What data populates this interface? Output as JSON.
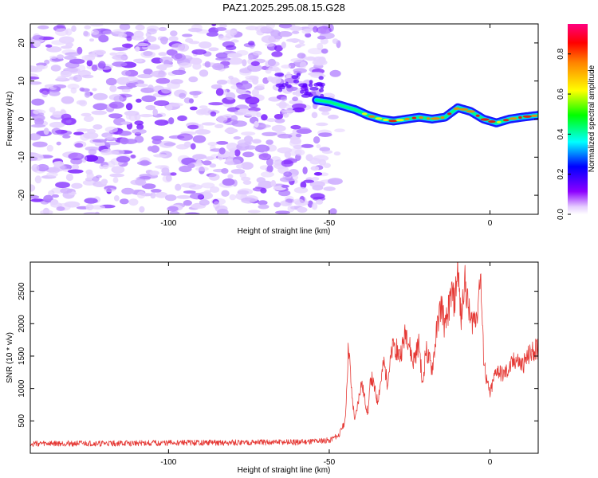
{
  "figure_title": "PAZ1.2025.295.08.15.G28",
  "chart_data": [
    {
      "type": "heatmap",
      "name": "spectrogram",
      "xlabel": "Height of straight line (km)",
      "ylabel": "Frequency (Hz)",
      "xlim": [
        -143,
        15
      ],
      "ylim": [
        -25,
        25
      ],
      "xticks": [
        -100,
        -50,
        0
      ],
      "yticks": [
        -20,
        -10,
        0,
        10,
        20
      ],
      "xtick_labels": [
        "-100",
        "-50",
        "0"
      ],
      "ytick_labels": [
        "-20",
        "-10",
        "0",
        "10",
        "20"
      ],
      "noise_region_x": [
        -143,
        -46
      ],
      "signal_track": {
        "x": [
          -54,
          -50,
          -46,
          -42,
          -38,
          -34,
          -30,
          -26,
          -22,
          -18,
          -14,
          -10,
          -6,
          -2,
          2,
          6,
          10,
          15
        ],
        "y": [
          5,
          4.5,
          3.5,
          2.5,
          1,
          0,
          -0.5,
          0,
          0.5,
          0,
          0.5,
          3,
          2,
          0,
          -1,
          0,
          0.5,
          1
        ]
      },
      "colorbar": {
        "label": "Normalized spectral amplitude",
        "ticks": [
          0.0,
          0.2,
          0.4,
          0.6,
          0.8
        ],
        "tick_labels": [
          "0.0",
          "0.2",
          "0.4",
          "0.6",
          "0.8"
        ],
        "range": [
          0,
          0.95
        ]
      }
    },
    {
      "type": "line",
      "name": "snr",
      "xlabel": "Height of straight line (km)",
      "ylabel": "SNR (10 * v/v)",
      "xlim": [
        -143,
        15
      ],
      "ylim": [
        0,
        2950
      ],
      "xticks": [
        -100,
        -50,
        0
      ],
      "yticks": [
        500,
        1000,
        1500,
        2000,
        2500
      ],
      "xtick_labels": [
        "-100",
        "-50",
        "0"
      ],
      "ytick_labels": [
        "500",
        "1000",
        "1500",
        "2000",
        "2500"
      ],
      "color": "#e53935",
      "series": [
        {
          "name": "SNR",
          "x": [
            -143,
            -120,
            -100,
            -80,
            -60,
            -50,
            -47,
            -45,
            -44,
            -43,
            -42,
            -40,
            -38,
            -37,
            -35,
            -33,
            -32,
            -30,
            -28,
            -26,
            -24,
            -22,
            -21,
            -20,
            -18,
            -16,
            -15,
            -14,
            -12,
            -11,
            -10,
            -9,
            -8,
            -6,
            -4,
            -3,
            -2,
            -1,
            0,
            2,
            4,
            6,
            8,
            10,
            12,
            15
          ],
          "y": [
            150,
            150,
            160,
            165,
            170,
            200,
            280,
            500,
            1700,
            900,
            500,
            1100,
            600,
            1200,
            800,
            1400,
            1100,
            1700,
            1500,
            1900,
            1400,
            1700,
            1000,
            1600,
            1300,
            2100,
            2300,
            1900,
            2500,
            2300,
            2900,
            2000,
            2700,
            2000,
            2200,
            2800,
            1500,
            1100,
            900,
            1300,
            1200,
            1300,
            1450,
            1350,
            1500,
            1650
          ]
        }
      ]
    }
  ]
}
